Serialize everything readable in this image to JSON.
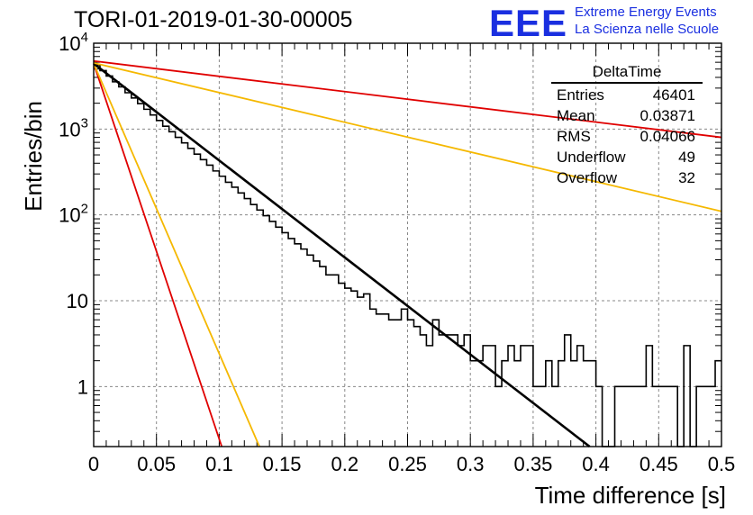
{
  "header": {
    "title": "TORI-01-2019-01-30-00005",
    "logo_text": "EEE",
    "logo_line1": "Extreme Energy Events",
    "logo_line2": "La Scienza nelle Scuole"
  },
  "stats_box": {
    "title": "DeltaTime",
    "rows": [
      {
        "label": "Entries",
        "value": "46401"
      },
      {
        "label": "Mean",
        "value": "0.03871"
      },
      {
        "label": "RMS",
        "value": "0.04066"
      },
      {
        "label": "Underflow",
        "value": "49"
      },
      {
        "label": "Overflow",
        "value": "32"
      }
    ]
  },
  "colors": {
    "histogram": "#000000",
    "fit_black": "#000000",
    "fit_red": "#e00000",
    "fit_orange": "#f5b800",
    "grid": "#888888",
    "logo": "#1a2fe0"
  },
  "chart_data": {
    "type": "line",
    "xlabel": "Time difference [s]",
    "ylabel": "Entries/bin",
    "xlim": [
      0,
      0.5
    ],
    "ylim": [
      0.2,
      10000
    ],
    "yscale": "log",
    "grid": true,
    "x_ticks": [
      "0",
      "0.05",
      "0.1",
      "0.15",
      "0.2",
      "0.25",
      "0.3",
      "0.35",
      "0.4",
      "0.45",
      "0.5"
    ],
    "y_ticks": [
      {
        "value": 1,
        "label": "1"
      },
      {
        "value": 10,
        "label": "10"
      },
      {
        "value": 100,
        "label": "10^2"
      },
      {
        "value": 1000,
        "label": "10^3"
      },
      {
        "value": 10000,
        "label": "10^4"
      }
    ],
    "histogram": {
      "bin_width": 0.005,
      "counts": [
        5600,
        4800,
        4150,
        3550,
        3100,
        2650,
        2300,
        1980,
        1700,
        1460,
        1260,
        1080,
        930,
        800,
        690,
        595,
        510,
        440,
        380,
        325,
        282,
        240,
        210,
        180,
        155,
        132,
        114,
        98,
        84,
        72,
        62,
        53,
        46,
        40,
        34,
        29,
        25,
        20,
        20,
        16,
        14,
        13,
        11,
        12,
        8,
        7,
        7,
        6,
        6,
        8,
        6,
        5,
        4,
        3,
        6,
        4,
        4,
        4,
        3,
        4,
        2,
        2,
        3,
        3,
        1,
        2,
        3,
        2,
        3,
        3,
        1,
        1,
        2,
        1,
        2,
        4,
        2,
        3,
        2,
        2,
        1,
        0,
        0,
        1,
        1,
        1,
        1,
        1,
        3,
        1,
        1,
        1,
        1,
        0,
        3,
        0,
        1,
        1,
        1,
        2
      ]
    },
    "fits": [
      {
        "color": "red",
        "x": [
          0,
          0.102
        ],
        "y": [
          5800,
          0.2
        ]
      },
      {
        "color": "orange",
        "x": [
          0,
          0.132
        ],
        "y": [
          5800,
          0.2
        ]
      },
      {
        "color": "black",
        "x": [
          0,
          0.395
        ],
        "y": [
          5800,
          0.2
        ]
      },
      {
        "color": "red",
        "x": [
          0,
          0.5
        ],
        "y": [
          6200,
          800
        ]
      },
      {
        "color": "orange",
        "x": [
          0,
          0.5
        ],
        "y": [
          5900,
          110
        ]
      }
    ]
  }
}
